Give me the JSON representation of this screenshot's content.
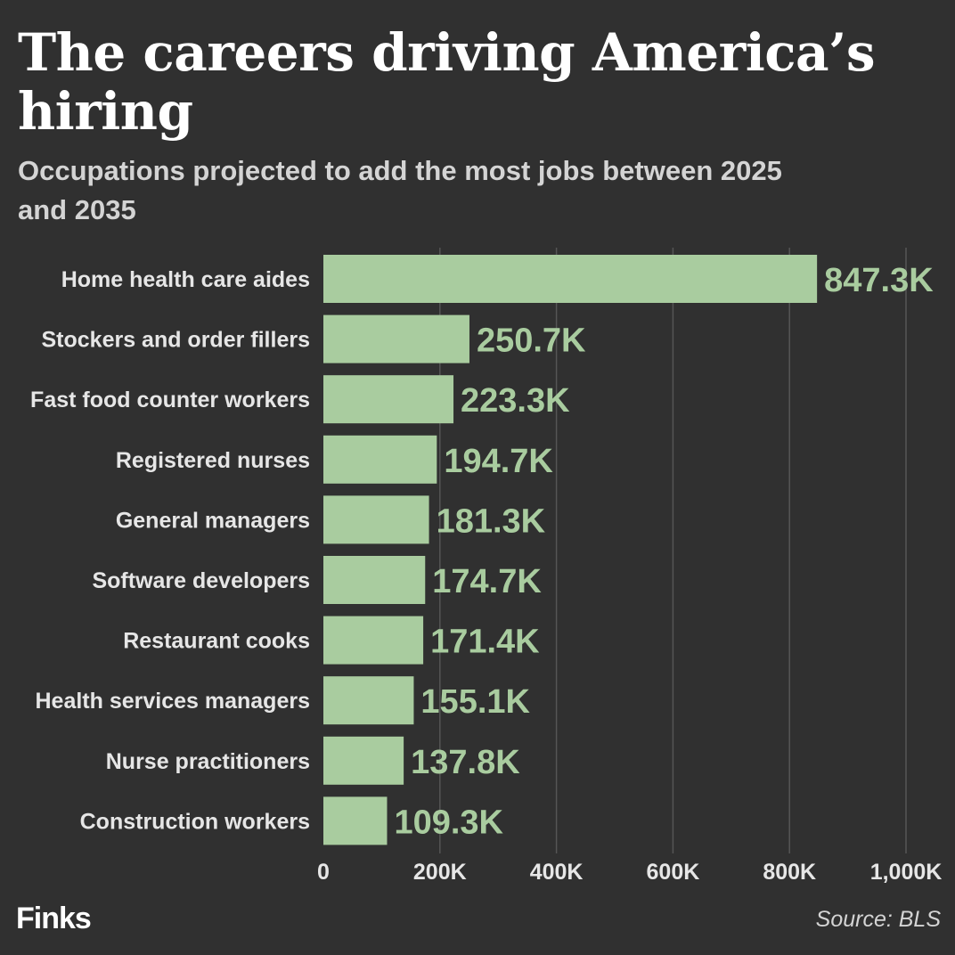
{
  "header": {
    "title": "The careers driving America’s hiring",
    "subtitle": "Occupations projected to add the most jobs between 2025 and 2035"
  },
  "footer": {
    "brand": "Finks",
    "source": "Source: BLS"
  },
  "colors": {
    "background": "#303030",
    "bar": "#a9cc9f",
    "value_label": "#a9cc9f",
    "category_label": "#e6e6e6",
    "tick_label": "#e6e6e6",
    "gridline": "#555555"
  },
  "chart_data": {
    "type": "bar",
    "orientation": "horizontal",
    "categories": [
      "Home health care aides",
      "Stockers and order fillers",
      "Fast food counter workers",
      "Registered nurses",
      "General managers",
      "Software developers",
      "Restaurant cooks",
      "Health services managers",
      "Nurse practitioners",
      "Construction workers"
    ],
    "values": [
      847300,
      250700,
      223300,
      194700,
      181300,
      174700,
      171400,
      155100,
      137800,
      109300
    ],
    "value_labels": [
      "847.3K",
      "250.7K",
      "223.3K",
      "194.7K",
      "181.3K",
      "174.7K",
      "171.4K",
      "155.1K",
      "137.8K",
      "109.3K"
    ],
    "x_ticks": [
      0,
      200000,
      400000,
      600000,
      800000,
      1000000
    ],
    "x_tick_labels": [
      "0",
      "200K",
      "400K",
      "600K",
      "800K",
      "1,000K"
    ],
    "xlim": [
      0,
      1000000
    ],
    "grid": "vertical"
  }
}
